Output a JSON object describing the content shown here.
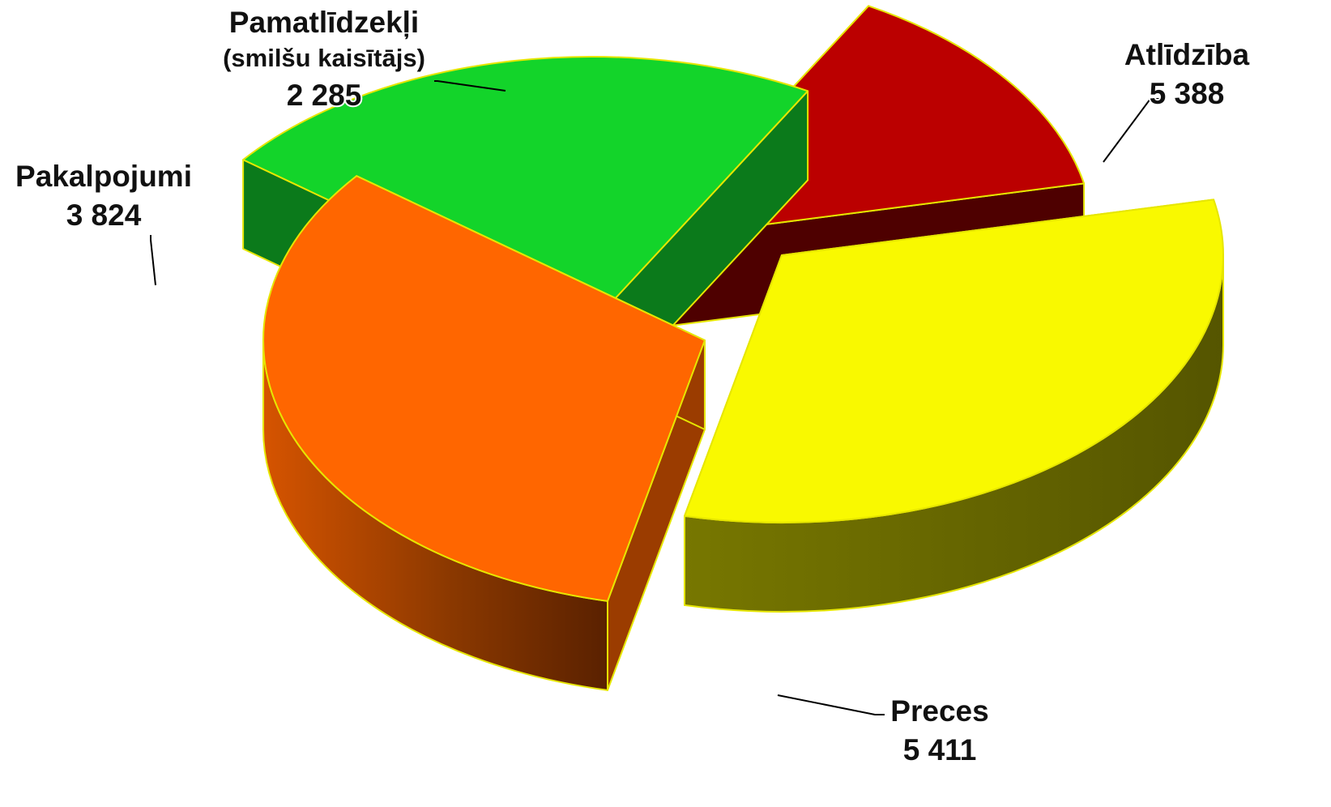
{
  "chart_data": {
    "type": "pie",
    "style": "3d-exploded",
    "title": "",
    "slices": [
      {
        "name": "Atlīdzība",
        "label_lines": [
          "Atlīdzība"
        ],
        "value": 5388,
        "value_label": "5 388",
        "color": "#f9f900"
      },
      {
        "name": "Preces",
        "label_lines": [
          "Preces"
        ],
        "value": 5411,
        "value_label": "5 411",
        "color": "#ff6600"
      },
      {
        "name": "Pakalpojumi",
        "label_lines": [
          "Pakalpojumi"
        ],
        "value": 3824,
        "value_label": "3 824",
        "color": "#13d42a"
      },
      {
        "name": "Pamatlīdzekļi (smilšu kaisītājs)",
        "label_lines": [
          "Pamatlīdzekļi",
          "(smilšu kaisītājs)"
        ],
        "value": 2285,
        "value_label": "2 285",
        "color": "#bb0000"
      }
    ]
  }
}
